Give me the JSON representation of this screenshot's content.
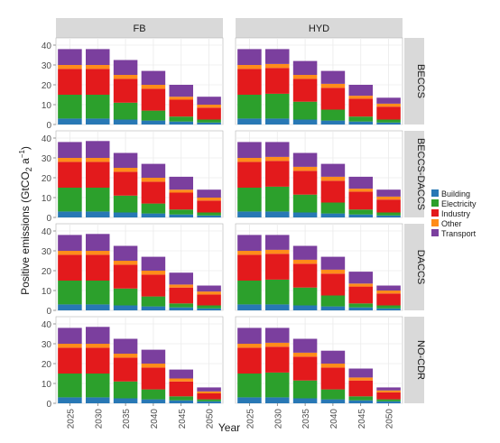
{
  "chart_data": {
    "type": "bar",
    "stacked": true,
    "xlabel": "Year",
    "ylabel": "Positive emissions (GtCO",
    "ylabel_sub": "2",
    "ylabel_mid": " a",
    "ylabel_sup": "−1",
    "ylabel_end": ")",
    "ylim": [
      0,
      40
    ],
    "yticks": [
      0,
      10,
      20,
      30,
      40
    ],
    "grid": true,
    "legend_position": "right",
    "categories": [
      "2025",
      "2030",
      "2035",
      "2040",
      "2045",
      "2050"
    ],
    "columns": [
      "FB",
      "HYD"
    ],
    "rows": [
      "BECCS",
      "BECCS-DACCS",
      "DACCS",
      "NO-CDR"
    ],
    "series_order": [
      "Building",
      "Electricity",
      "Industry",
      "Other",
      "Transport"
    ],
    "legend": [
      {
        "name": "Building",
        "color": "#2878b5"
      },
      {
        "name": "Electricity",
        "color": "#2ca02c"
      },
      {
        "name": "Industry",
        "color": "#e31a1c"
      },
      {
        "name": "Other",
        "color": "#ff8c1a"
      },
      {
        "name": "Transport",
        "color": "#7b3f9e"
      }
    ],
    "panels": [
      {
        "row": "BECCS",
        "col": "FB",
        "series": {
          "Building": [
            3,
            3,
            2.5,
            2,
            1.5,
            1
          ],
          "Electricity": [
            12,
            12,
            8.5,
            5,
            2.5,
            1.5
          ],
          "Industry": [
            13,
            13,
            12,
            11,
            8.5,
            6
          ],
          "Other": [
            2,
            2,
            2,
            2,
            1.5,
            1.5
          ],
          "Transport": [
            8,
            8,
            7.5,
            7,
            6,
            4
          ]
        }
      },
      {
        "row": "BECCS",
        "col": "HYD",
        "series": {
          "Building": [
            3,
            3,
            2.5,
            2,
            1.5,
            1
          ],
          "Electricity": [
            12,
            12.5,
            9,
            5.5,
            2.5,
            1.5
          ],
          "Industry": [
            13,
            13,
            11.5,
            11,
            9,
            6.5
          ],
          "Other": [
            2,
            2,
            2,
            2,
            1.5,
            1.5
          ],
          "Transport": [
            8,
            7.5,
            7,
            6.5,
            5.5,
            3
          ]
        }
      },
      {
        "row": "BECCS-DACCS",
        "col": "FB",
        "series": {
          "Building": [
            3,
            3,
            2.5,
            2,
            1.5,
            1
          ],
          "Electricity": [
            12,
            12,
            8.5,
            5,
            2.5,
            1.5
          ],
          "Industry": [
            13,
            13,
            12,
            11,
            8.5,
            6
          ],
          "Other": [
            2,
            2,
            2,
            2,
            1.5,
            1.5
          ],
          "Transport": [
            8,
            8.5,
            7.5,
            7,
            6.5,
            4
          ]
        }
      },
      {
        "row": "BECCS-DACCS",
        "col": "HYD",
        "series": {
          "Building": [
            3,
            3,
            2.5,
            2,
            1.5,
            1
          ],
          "Electricity": [
            12,
            12.5,
            9,
            5.5,
            2.5,
            1.5
          ],
          "Industry": [
            13,
            13,
            12,
            11,
            9,
            6.5
          ],
          "Other": [
            2,
            2,
            2,
            2,
            1.5,
            1.5
          ],
          "Transport": [
            8,
            7.5,
            7,
            6.5,
            6,
            3.5
          ]
        }
      },
      {
        "row": "DACCS",
        "col": "FB",
        "series": {
          "Building": [
            3,
            3,
            2.5,
            2,
            1.5,
            1
          ],
          "Electricity": [
            12,
            12,
            8.5,
            5,
            2,
            1.5
          ],
          "Industry": [
            13,
            13,
            12,
            11,
            8,
            5.5
          ],
          "Other": [
            2,
            2,
            2,
            2,
            1.5,
            1.5
          ],
          "Transport": [
            8,
            8.5,
            7.5,
            7,
            6,
            3
          ]
        }
      },
      {
        "row": "DACCS",
        "col": "HYD",
        "series": {
          "Building": [
            3,
            3,
            2.5,
            2,
            1.5,
            1
          ],
          "Electricity": [
            12,
            12.5,
            9,
            5.5,
            2,
            1.5
          ],
          "Industry": [
            13,
            13,
            12,
            11,
            8.5,
            6
          ],
          "Other": [
            2,
            2,
            2,
            2,
            1.5,
            1.5
          ],
          "Transport": [
            8,
            7.5,
            7,
            6.5,
            6,
            2.5
          ]
        }
      },
      {
        "row": "NO-CDR",
        "col": "FB",
        "series": {
          "Building": [
            3,
            3,
            2.5,
            2,
            1.5,
            1
          ],
          "Electricity": [
            12,
            12,
            8.5,
            5,
            2,
            1
          ],
          "Industry": [
            13,
            13,
            12,
            11,
            7.5,
            3
          ],
          "Other": [
            2,
            2,
            2,
            2,
            1.5,
            1
          ],
          "Transport": [
            8,
            8.5,
            7.5,
            7,
            4.5,
            2
          ]
        }
      },
      {
        "row": "NO-CDR",
        "col": "HYD",
        "series": {
          "Building": [
            3,
            3,
            2.5,
            2,
            1.5,
            1
          ],
          "Electricity": [
            12,
            12.5,
            9,
            5,
            2,
            1
          ],
          "Industry": [
            13,
            13,
            12,
            11,
            8,
            3.5
          ],
          "Other": [
            2,
            2,
            2,
            2,
            1.5,
            1
          ],
          "Transport": [
            8,
            7.5,
            7,
            6.5,
            4.5,
            1.5
          ]
        }
      }
    ]
  }
}
